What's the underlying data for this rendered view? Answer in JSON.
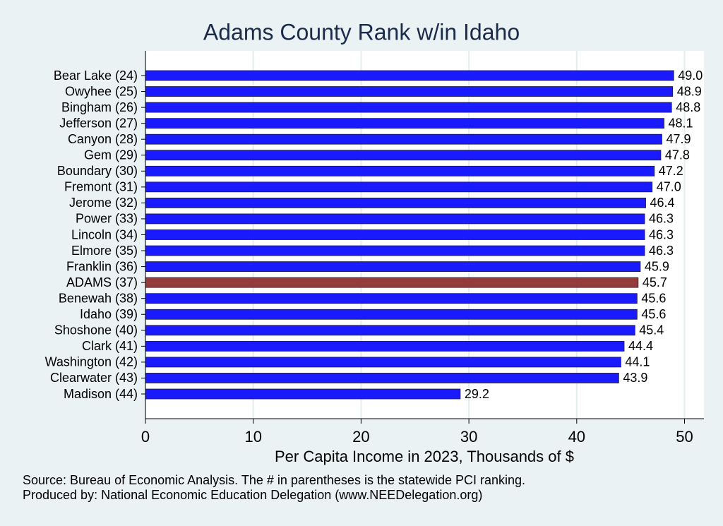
{
  "chart_data": {
    "type": "bar",
    "orientation": "horizontal",
    "title": "Adams County Rank w/in Idaho",
    "x_label": "Per Capita Income in 2023, Thousands of $",
    "notes": [
      "Source: Bureau of Economic Analysis. The # in parentheses is the statewide PCI ranking.",
      "Produced by: National Economic Education Delegation (www.NEEDelegation.org)"
    ],
    "categories": [
      "Bear Lake (24)",
      "Owyhee (25)",
      "Bingham (26)",
      "Jefferson (27)",
      "Canyon (28)",
      "Gem (29)",
      "Boundary (30)",
      "Fremont (31)",
      "Jerome (32)",
      "Power (33)",
      "Lincoln (34)",
      "Elmore (35)",
      "Franklin (36)",
      "ADAMS (37)",
      "Benewah (38)",
      "Idaho (39)",
      "Shoshone (40)",
      "Clark (41)",
      "Washington (42)",
      "Clearwater (43)",
      "Madison (44)"
    ],
    "values": [
      49.0,
      48.9,
      48.8,
      48.1,
      47.9,
      47.8,
      47.2,
      47.0,
      46.4,
      46.3,
      46.3,
      46.3,
      45.9,
      45.7,
      45.6,
      45.6,
      45.4,
      44.4,
      44.1,
      43.9,
      29.2
    ],
    "value_labels": [
      "49.0",
      "48.9",
      "48.8",
      "48.1",
      "47.9",
      "47.8",
      "47.2",
      "47.0",
      "46.4",
      "46.3",
      "46.3",
      "46.3",
      "45.9",
      "45.7",
      "45.6",
      "45.6",
      "45.4",
      "44.4",
      "44.1",
      "43.9",
      "29.2"
    ],
    "colors": [
      "#1a1aff",
      "#1a1aff",
      "#1a1aff",
      "#1a1aff",
      "#1a1aff",
      "#1a1aff",
      "#1a1aff",
      "#1a1aff",
      "#1a1aff",
      "#1a1aff",
      "#1a1aff",
      "#1a1aff",
      "#1a1aff",
      "#943c3c",
      "#1a1aff",
      "#1a1aff",
      "#1a1aff",
      "#1a1aff",
      "#1a1aff",
      "#1a1aff",
      "#1a1aff"
    ],
    "xlim": [
      0,
      51.8
    ],
    "xticks": [
      0,
      10,
      20,
      30,
      40,
      50
    ],
    "grid": true
  }
}
